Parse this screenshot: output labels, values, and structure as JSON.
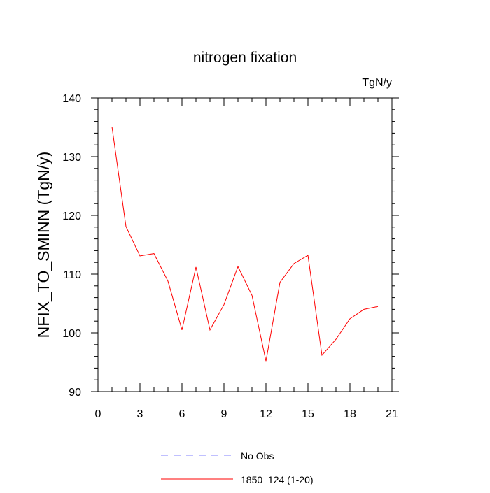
{
  "chart_data": {
    "type": "line",
    "title": "nitrogen fixation",
    "units": "TgN/y",
    "ylabel": "NFIX_TO_SMINN  (TgN/y)",
    "xlabel": "",
    "xlim": [
      0,
      21
    ],
    "ylim": [
      90,
      140
    ],
    "xticks": [
      0,
      3,
      6,
      9,
      12,
      15,
      18,
      21
    ],
    "yticks": [
      90,
      100,
      110,
      120,
      130,
      140
    ],
    "grid": false,
    "legend_position": "bottom",
    "series": [
      {
        "name": "No Obs",
        "color": "#8080ff",
        "style": "dashed",
        "x": [],
        "y": []
      },
      {
        "name": "1850_124 (1-20)",
        "color": "#ff0000",
        "style": "solid",
        "x": [
          1,
          2,
          3,
          4,
          5,
          6,
          7,
          8,
          9,
          10,
          11,
          12,
          13,
          14,
          15,
          16,
          17,
          18,
          19,
          20
        ],
        "y": [
          135.1,
          118.1,
          113.1,
          113.5,
          108.8,
          100.5,
          111.2,
          100.5,
          104.8,
          111.3,
          106.4,
          95.2,
          108.6,
          111.8,
          113.2,
          96.2,
          98.9,
          102.4,
          104.0,
          104.5
        ]
      }
    ]
  }
}
